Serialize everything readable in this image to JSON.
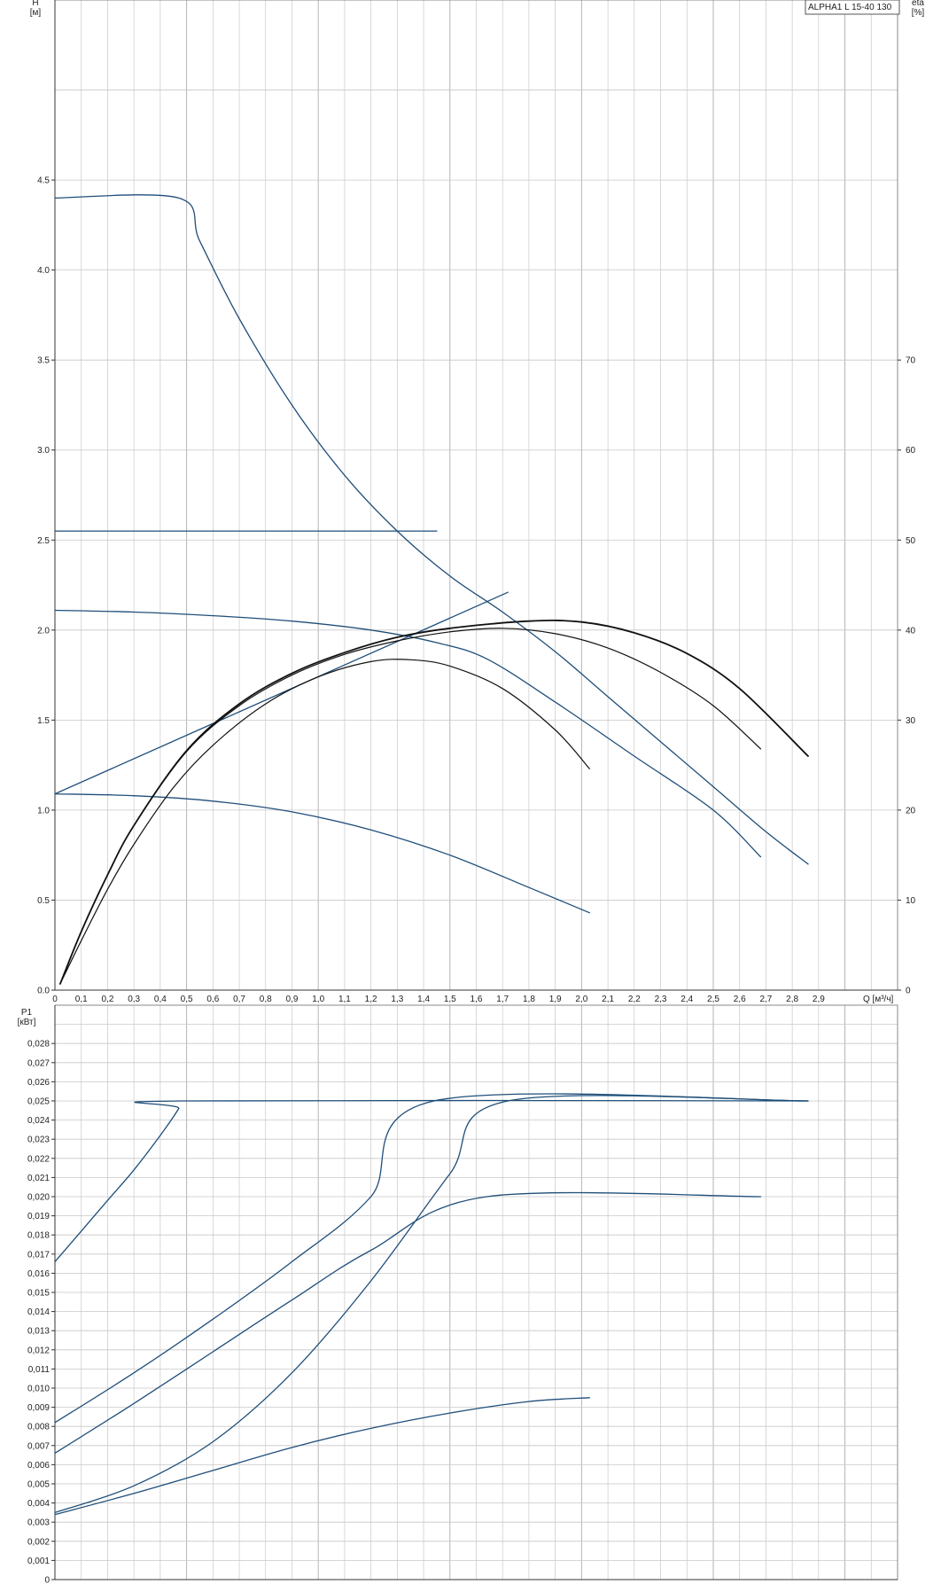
{
  "model_label": "ALPHA1 L 15-40 130",
  "colors": {
    "blue": "#1f4e79",
    "black": "#111111",
    "grid": "#c8c8c8",
    "gridMajor": "#b4b4b4"
  },
  "chart_data": [
    {
      "type": "line",
      "name": "head-efficiency",
      "y_label": "H\n[м]",
      "y2_label": "eta\n[%]",
      "x_label": "Q [м³/ч]",
      "xlim": [
        0,
        3.2
      ],
      "ylim": [
        0,
        5.5
      ],
      "y2lim": [
        0,
        110
      ],
      "grid": true,
      "x_ticks": [
        "0",
        "0,1",
        "0,2",
        "0,3",
        "0,4",
        "0,5",
        "0,6",
        "0,7",
        "0,8",
        "0,9",
        "1,0",
        "1,1",
        "1,2",
        "1,3",
        "1,4",
        "1,5",
        "1,6",
        "1,7",
        "1,8",
        "1,9",
        "2,0",
        "2,1",
        "2,2",
        "2,3",
        "2,4",
        "2,5",
        "2,6",
        "2,7",
        "2,8",
        "2,9"
      ],
      "y_ticks": [
        {
          "v": 0,
          "t": "0.0"
        },
        {
          "v": 0.5,
          "t": "0.5"
        },
        {
          "v": 1.0,
          "t": "1.0"
        },
        {
          "v": 1.5,
          "t": "1.5"
        },
        {
          "v": 2.0,
          "t": "2.0"
        },
        {
          "v": 2.5,
          "t": "2.5"
        },
        {
          "v": 3.0,
          "t": "3.0"
        },
        {
          "v": 3.5,
          "t": "3.5"
        },
        {
          "v": 4.0,
          "t": "4.0"
        },
        {
          "v": 4.5,
          "t": "4.5"
        }
      ],
      "y2_ticks": [
        {
          "v": 0,
          "t": "0"
        },
        {
          "v": 10,
          "t": "10"
        },
        {
          "v": 20,
          "t": "20"
        },
        {
          "v": 30,
          "t": "30"
        },
        {
          "v": 40,
          "t": "40"
        },
        {
          "v": 50,
          "t": "50"
        },
        {
          "v": 60,
          "t": "60"
        },
        {
          "v": 70,
          "t": "70"
        }
      ],
      "series": [
        {
          "color": "blue",
          "axis": "y",
          "x": [
            0,
            0.47,
            0.55,
            0.7,
            0.9,
            1.1,
            1.3,
            1.5,
            1.7,
            1.9,
            2.1,
            2.3,
            2.5,
            2.7,
            2.86
          ],
          "y": [
            4.4,
            4.4,
            4.16,
            3.73,
            3.25,
            2.86,
            2.55,
            2.3,
            2.1,
            1.88,
            1.63,
            1.38,
            1.13,
            0.88,
            0.7
          ]
        },
        {
          "color": "blue",
          "axis": "y",
          "x": [
            0,
            1.45
          ],
          "y": [
            2.55,
            2.55
          ]
        },
        {
          "color": "blue",
          "axis": "y",
          "x": [
            0,
            0.3,
            0.6,
            0.9,
            1.2,
            1.45,
            1.64,
            1.9,
            2.2,
            2.5,
            2.68
          ],
          "y": [
            2.11,
            2.1,
            2.08,
            2.05,
            2.0,
            1.93,
            1.84,
            1.6,
            1.3,
            1.0,
            0.74
          ]
        },
        {
          "color": "blue",
          "axis": "y",
          "x": [
            0,
            1.72
          ],
          "y": [
            1.09,
            2.21
          ]
        },
        {
          "color": "blue",
          "axis": "y",
          "x": [
            0,
            0.3,
            0.6,
            0.9,
            1.2,
            1.5,
            1.8,
            2.03
          ],
          "y": [
            1.09,
            1.08,
            1.05,
            0.99,
            0.89,
            0.75,
            0.57,
            0.43
          ]
        },
        {
          "color": "black",
          "axis": "y2",
          "x": [
            0.02,
            0.1,
            0.2,
            0.3,
            0.5,
            0.7,
            0.9,
            1.1,
            1.3,
            1.5,
            1.8,
            2.0,
            2.2,
            2.4,
            2.6,
            2.86
          ],
          "y": [
            0.7,
            6.5,
            12.8,
            18.3,
            26.6,
            31.8,
            35.2,
            37.5,
            39.2,
            40.2,
            41.0,
            40.9,
            39.7,
            37.4,
            33.5,
            26.0
          ]
        },
        {
          "color": "black",
          "axis": "y2",
          "x": [
            0.02,
            0.1,
            0.2,
            0.3,
            0.5,
            0.7,
            0.9,
            1.1,
            1.3,
            1.5,
            1.7,
            1.9,
            2.1,
            2.3,
            2.5,
            2.68
          ],
          "y": [
            0.7,
            6.5,
            12.8,
            18.3,
            26.5,
            31.6,
            35.0,
            37.3,
            38.8,
            39.8,
            40.2,
            39.6,
            38.0,
            35.3,
            31.6,
            26.8
          ]
        },
        {
          "color": "black",
          "axis": "y2",
          "x": [
            0.02,
            0.1,
            0.2,
            0.3,
            0.45,
            0.6,
            0.8,
            1.0,
            1.2,
            1.35,
            1.5,
            1.7,
            1.9,
            2.03
          ],
          "y": [
            0.7,
            5.5,
            11.2,
            16.2,
            22.5,
            27.2,
            31.8,
            34.8,
            36.5,
            36.7,
            36.0,
            33.5,
            28.9,
            24.6
          ]
        }
      ]
    },
    {
      "type": "line",
      "name": "power",
      "y_label": "P1\n[кВт]",
      "xlim": [
        0,
        3.2
      ],
      "ylim": [
        0,
        0.03
      ],
      "grid": true,
      "y_ticks": [
        {
          "v": 0,
          "t": "0"
        },
        {
          "v": 0.001,
          "t": "0,001"
        },
        {
          "v": 0.002,
          "t": "0,002"
        },
        {
          "v": 0.003,
          "t": "0,003"
        },
        {
          "v": 0.004,
          "t": "0,004"
        },
        {
          "v": 0.005,
          "t": "0,005"
        },
        {
          "v": 0.006,
          "t": "0,006"
        },
        {
          "v": 0.007,
          "t": "0,007"
        },
        {
          "v": 0.008,
          "t": "0,008"
        },
        {
          "v": 0.009,
          "t": "0,009"
        },
        {
          "v": 0.01,
          "t": "0,010"
        },
        {
          "v": 0.011,
          "t": "0,011"
        },
        {
          "v": 0.012,
          "t": "0,012"
        },
        {
          "v": 0.013,
          "t": "0,013"
        },
        {
          "v": 0.014,
          "t": "0,014"
        },
        {
          "v": 0.015,
          "t": "0,015"
        },
        {
          "v": 0.016,
          "t": "0,016"
        },
        {
          "v": 0.017,
          "t": "0,017"
        },
        {
          "v": 0.018,
          "t": "0,018"
        },
        {
          "v": 0.019,
          "t": "0,019"
        },
        {
          "v": 0.02,
          "t": "0,020"
        },
        {
          "v": 0.021,
          "t": "0,021"
        },
        {
          "v": 0.022,
          "t": "0,022"
        },
        {
          "v": 0.023,
          "t": "0,023"
        },
        {
          "v": 0.024,
          "t": "0,024"
        },
        {
          "v": 0.025,
          "t": "0,025"
        },
        {
          "v": 0.026,
          "t": "0,026"
        },
        {
          "v": 0.027,
          "t": "0,027"
        },
        {
          "v": 0.028,
          "t": "0,028"
        }
      ],
      "series": [
        {
          "color": "blue",
          "x": [
            0,
            0.1,
            0.2,
            0.3,
            0.4,
            0.47,
            0.48,
            2.86
          ],
          "y": [
            0.0166,
            0.0182,
            0.0198,
            0.0214,
            0.0232,
            0.0246,
            0.025,
            0.025
          ]
        },
        {
          "color": "blue",
          "x": [
            0,
            0.3,
            0.6,
            0.9,
            1.2,
            1.44,
            2.86
          ],
          "y": [
            0.0082,
            0.0108,
            0.0136,
            0.0166,
            0.02,
            0.025,
            0.025
          ]
        },
        {
          "color": "blue",
          "x": [
            0,
            0.3,
            0.6,
            0.9,
            1.2,
            1.64,
            2.68
          ],
          "y": [
            0.0066,
            0.0092,
            0.0119,
            0.0146,
            0.0172,
            0.02,
            0.02
          ]
        },
        {
          "color": "blue",
          "x": [
            0,
            0.3,
            0.6,
            0.9,
            1.2,
            1.5,
            1.72,
            2.86
          ],
          "y": [
            0.0035,
            0.0049,
            0.0072,
            0.0108,
            0.0156,
            0.0212,
            0.025,
            0.025
          ]
        },
        {
          "color": "blue",
          "x": [
            0,
            0.3,
            0.6,
            0.9,
            1.2,
            1.5,
            1.8,
            2.03
          ],
          "y": [
            0.0034,
            0.0045,
            0.0057,
            0.0069,
            0.0079,
            0.0087,
            0.0093,
            0.0095
          ]
        }
      ]
    }
  ]
}
